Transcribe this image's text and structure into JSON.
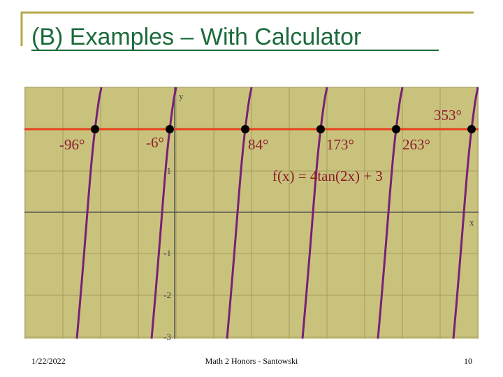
{
  "header": {
    "title": "(B) Examples – With Calculator"
  },
  "graph": {
    "axis_labels": {
      "y": "y",
      "x": "x"
    },
    "y_tick_labels": [
      "1",
      "-1",
      "-2",
      "-3"
    ],
    "function": "f(x) = 4tan(2x) + 3",
    "solutions": [
      "-96°",
      "-6°",
      "84°",
      "173°",
      "263°",
      "353°"
    ]
  },
  "footer": {
    "date": "1/22/2022",
    "course": "Math 2 Honors - Santowski",
    "page": "10"
  }
}
